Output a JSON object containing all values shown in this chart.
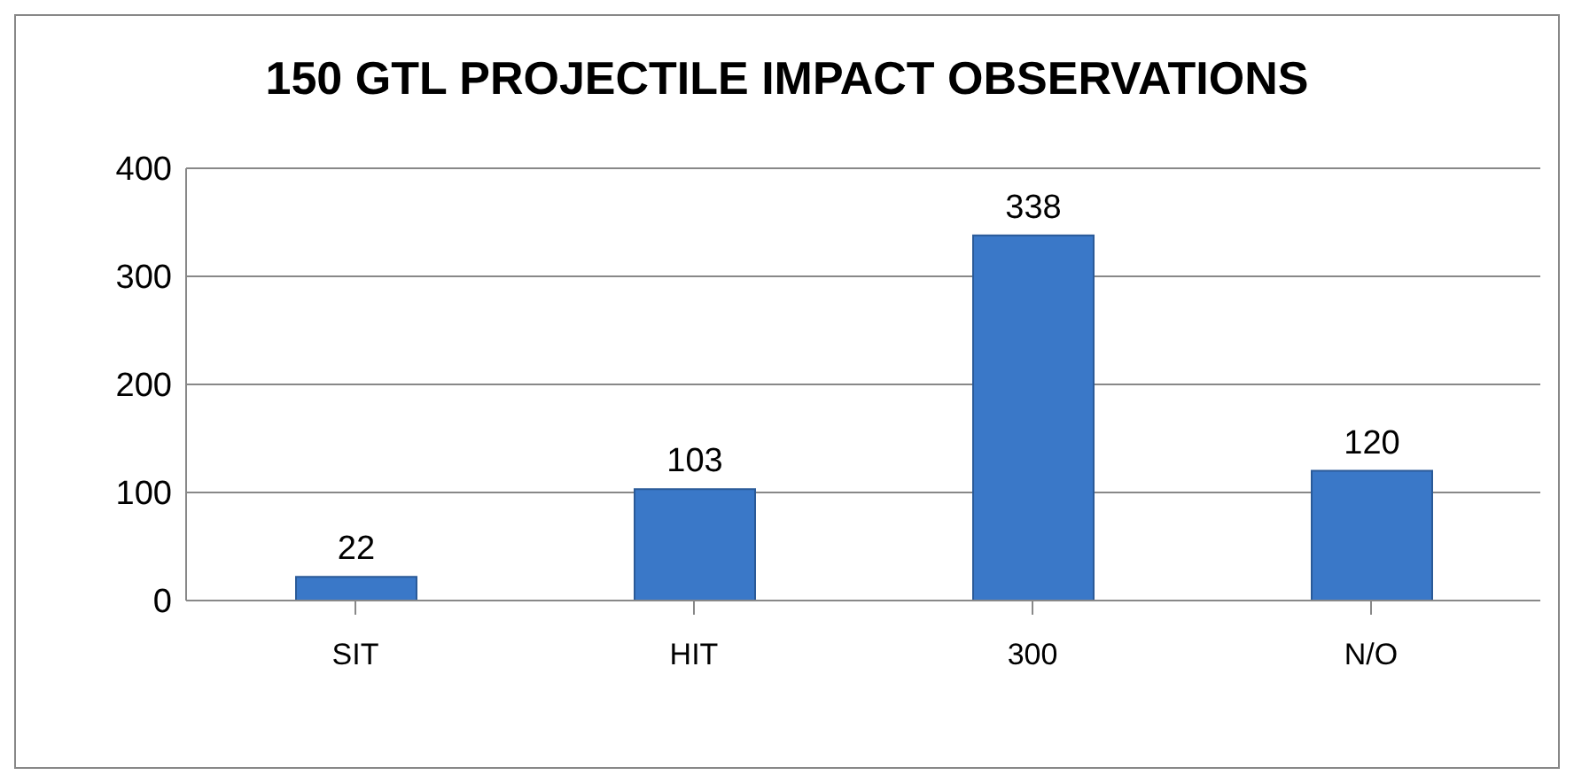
{
  "chart_data": {
    "type": "bar",
    "title": "150 GTL PROJECTILE IMPACT OBSERVATIONS",
    "categories": [
      "SIT",
      "HIT",
      "300",
      "N/O"
    ],
    "values": [
      22,
      103,
      338,
      120
    ],
    "color": "#3a78c8",
    "ylim": [
      0,
      400
    ],
    "yticks": [
      0,
      100,
      200,
      300,
      400
    ],
    "grid": "y",
    "data_labels": true,
    "legend": false
  }
}
